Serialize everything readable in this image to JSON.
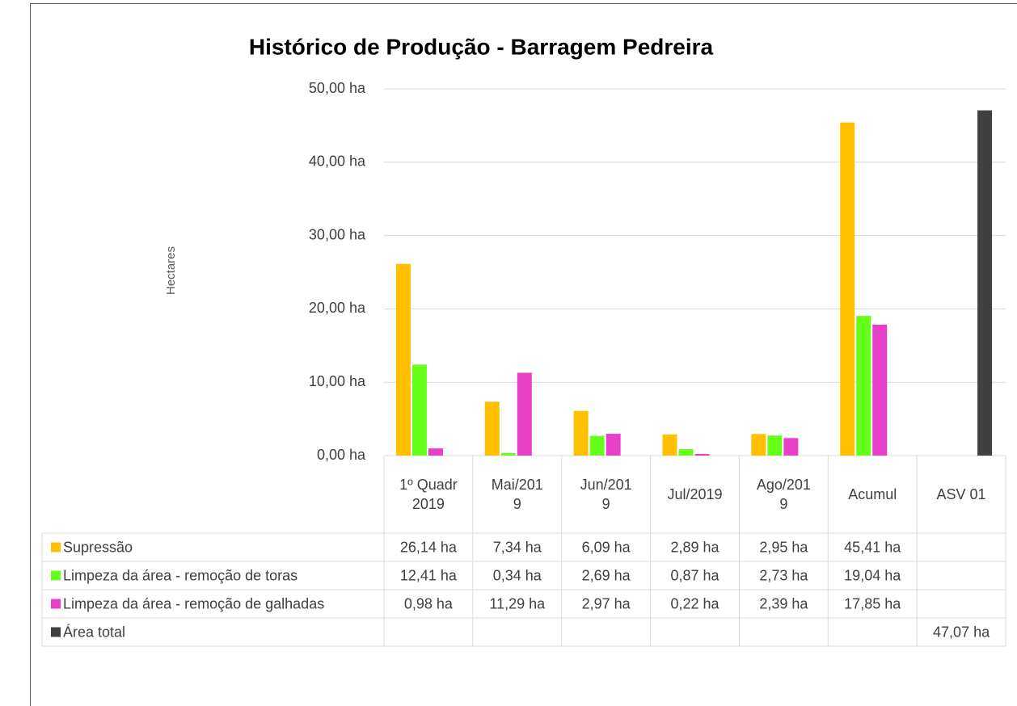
{
  "chart_data": {
    "type": "bar",
    "title": "Histórico de Produção - Barragem Pedreira",
    "y_label": "Hectares",
    "categories": [
      "1º Quadr 2019",
      "Mai/2019",
      "Jun/2019",
      "Jul/2019",
      "Ago/2019",
      "Acumul",
      "ASV 01"
    ],
    "series": [
      {
        "name": "Supressão",
        "color": "#ffc000",
        "values": [
          26.14,
          7.34,
          6.09,
          2.89,
          2.95,
          45.41,
          null
        ],
        "value_labels": [
          "26,14 ha",
          "7,34 ha",
          "6,09 ha",
          "2,89 ha",
          "2,95 ha",
          "45,41 ha",
          null
        ]
      },
      {
        "name": "Limpeza da área - remoção de toras",
        "color": "#66ff1a",
        "values": [
          12.41,
          0.34,
          2.69,
          0.87,
          2.73,
          19.04,
          null
        ],
        "value_labels": [
          "12,41 ha",
          "0,34 ha",
          "2,69 ha",
          "0,87 ha",
          "2,73 ha",
          "19,04 ha",
          null
        ]
      },
      {
        "name": "Limpeza da área - remoção de galhadas",
        "color": "#e83fc8",
        "values": [
          0.98,
          11.29,
          2.97,
          0.22,
          2.39,
          17.85,
          null
        ],
        "value_labels": [
          "0,98 ha",
          "11,29 ha",
          "2,97 ha",
          "0,22 ha",
          "2,39 ha",
          "17,85 ha",
          null
        ]
      },
      {
        "name": "Área total",
        "color": "#404040",
        "values": [
          null,
          null,
          null,
          null,
          null,
          null,
          47.07
        ],
        "value_labels": [
          null,
          null,
          null,
          null,
          null,
          null,
          "47,07 ha"
        ]
      }
    ],
    "ylim": [
      0,
      50
    ],
    "yticks": [
      {
        "value": 0,
        "label": "0,00 ha"
      },
      {
        "value": 10,
        "label": "10,00 ha"
      },
      {
        "value": 20,
        "label": "20,00 ha"
      },
      {
        "value": 30,
        "label": "30,00 ha"
      },
      {
        "value": 40,
        "label": "40,00 ha"
      },
      {
        "value": 50,
        "label": "50,00 ha"
      }
    ],
    "grid": true,
    "data_table": true
  }
}
